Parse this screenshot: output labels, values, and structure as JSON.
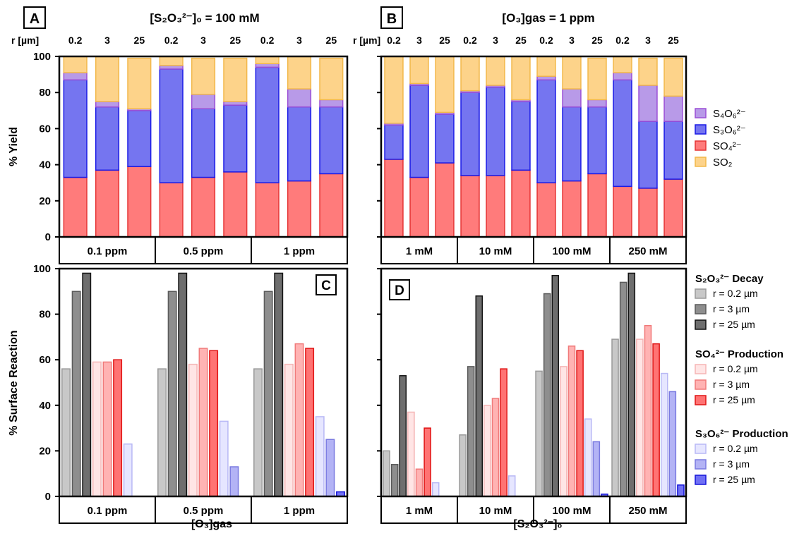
{
  "colors": {
    "so2": "#FDD38A",
    "so4": "#FF7B7B",
    "s3o6": "#7575F0",
    "s4o6": "#B89AE8",
    "so2_edge": "#F2B84A",
    "so4_edge": "#E53535",
    "s3o6_edge": "#1A1AE6",
    "s4o6_edge": "#9B4FD6"
  },
  "panelA": {
    "label": "A",
    "title": "[S₂O₃²⁻]₀ = 100 mM",
    "r_header": "r [µm]",
    "r_labels": [
      "0.2",
      "3",
      "25",
      "0.2",
      "3",
      "25",
      "0.2",
      "3",
      "25"
    ],
    "groups": [
      "0.1 ppm",
      "0.5 ppm",
      "1 ppm"
    ],
    "ylabel": "% Yield",
    "yticks": [
      "0",
      "20",
      "40",
      "60",
      "80",
      "100"
    ]
  },
  "panelB": {
    "label": "B",
    "title": "[O₃]gas = 1 ppm",
    "r_header": "r [µm]",
    "r_labels": [
      "0.2",
      "3",
      "25",
      "0.2",
      "3",
      "25",
      "0.2",
      "3",
      "25",
      "0.2",
      "3",
      "25"
    ],
    "groups": [
      "1 mM",
      "10 mM",
      "100 mM",
      "250 mM"
    ]
  },
  "legend_top": [
    "S₄O₆²⁻",
    "S₃O₆²⁻",
    "SO₄²⁻",
    "SO₂"
  ],
  "panelC": {
    "label": "C",
    "groups": [
      "0.1 ppm",
      "0.5 ppm",
      "1 ppm"
    ],
    "xlabel": "[O₃]gas",
    "ylabel": "% Surface Reaction",
    "yticks": [
      "0",
      "20",
      "40",
      "60",
      "80",
      "100"
    ]
  },
  "panelD": {
    "label": "D",
    "groups": [
      "1 mM",
      "10 mM",
      "100 mM",
      "250 mM"
    ],
    "xlabel": "[S₂O₃²⁻]₀"
  },
  "legend_bottom": {
    "sections": [
      {
        "title": "S₂O₃²⁻ Decay",
        "items": [
          "r = 0.2 µm",
          "r = 3 µm",
          "r = 25 µm"
        ]
      },
      {
        "title": "SO₄²⁻ Production",
        "items": [
          "r = 0.2 µm",
          "r = 3 µm",
          "r = 25 µm"
        ]
      },
      {
        "title": "S₃O₆²⁻ Production",
        "items": [
          "r = 0.2 µm",
          "r = 3 µm",
          "r = 25 µm"
        ]
      }
    ]
  },
  "chart_data": [
    {
      "type": "bar",
      "panel": "A",
      "stacked": true,
      "ylim": [
        0,
        100
      ],
      "ylabel": "% Yield",
      "categories": [
        "0.1 ppm r=0.2",
        "0.1 ppm r=3",
        "0.1 ppm r=25",
        "0.5 ppm r=0.2",
        "0.5 ppm r=3",
        "0.5 ppm r=25",
        "1 ppm r=0.2",
        "1 ppm r=3",
        "1 ppm r=25"
      ],
      "series": [
        {
          "name": "SO₄²⁻",
          "values": [
            33,
            37,
            39,
            30,
            33,
            36,
            30,
            31,
            35
          ]
        },
        {
          "name": "S₃O₆²⁻",
          "values": [
            54,
            35,
            31,
            63,
            38,
            37,
            64,
            41,
            37
          ]
        },
        {
          "name": "S₄O₆²⁻",
          "values": [
            4,
            3,
            1,
            2,
            8,
            2,
            2,
            10,
            4
          ]
        },
        {
          "name": "SO₂",
          "values": [
            9,
            25,
            28,
            5,
            20,
            24,
            4,
            18,
            23
          ]
        }
      ]
    },
    {
      "type": "bar",
      "panel": "B",
      "stacked": true,
      "ylim": [
        0,
        100
      ],
      "categories": [
        "1 mM r=0.2",
        "1 mM r=3",
        "1 mM r=25",
        "10 mM r=0.2",
        "10 mM r=3",
        "10 mM r=25",
        "100 mM r=0.2",
        "100 mM r=3",
        "100 mM r=25",
        "250 mM r=0.2",
        "250 mM r=3",
        "250 mM r=25"
      ],
      "series": [
        {
          "name": "SO₄²⁻",
          "values": [
            43,
            33,
            41,
            34,
            34,
            37,
            30,
            31,
            35,
            28,
            27,
            32
          ]
        },
        {
          "name": "S₃O₆²⁻",
          "values": [
            19,
            51,
            27,
            46,
            49,
            38,
            57,
            41,
            37,
            59,
            37,
            32
          ]
        },
        {
          "name": "S₄O₆²⁻",
          "values": [
            1,
            1,
            1,
            1,
            1,
            1,
            2,
            10,
            4,
            4,
            20,
            14
          ]
        },
        {
          "name": "SO₂",
          "values": [
            37,
            15,
            31,
            19,
            16,
            24,
            11,
            18,
            23,
            9,
            15,
            21
          ]
        }
      ]
    },
    {
      "type": "bar",
      "panel": "C",
      "ylim": [
        0,
        100
      ],
      "ylabel": "% Surface Reaction",
      "xlabel": "[O₃]gas",
      "categories": [
        "0.1 ppm",
        "0.5 ppm",
        "1 ppm"
      ],
      "series": [
        {
          "name": "S₂O₃²⁻ Decay r = 0.2 µm",
          "values": [
            56,
            56,
            56
          ]
        },
        {
          "name": "S₂O₃²⁻ Decay r = 3 µm",
          "values": [
            90,
            90,
            90
          ]
        },
        {
          "name": "S₂O₃²⁻ Decay r = 25 µm",
          "values": [
            98,
            98,
            98
          ]
        },
        {
          "name": "SO₄²⁻ Production r = 0.2 µm",
          "values": [
            59,
            58,
            58
          ]
        },
        {
          "name": "SO₄²⁻ Production r = 3 µm",
          "values": [
            59,
            65,
            67
          ]
        },
        {
          "name": "SO₄²⁻ Production r = 25 µm",
          "values": [
            60,
            64,
            65
          ]
        },
        {
          "name": "S₃O₆²⁻ Production r = 0.2 µm",
          "values": [
            23,
            33,
            35
          ]
        },
        {
          "name": "S₃O₆²⁻ Production r = 3 µm",
          "values": [
            0,
            13,
            25
          ]
        },
        {
          "name": "S₃O₆²⁻ Production r = 25 µm",
          "values": [
            0,
            0,
            2
          ]
        }
      ]
    },
    {
      "type": "bar",
      "panel": "D",
      "ylim": [
        0,
        100
      ],
      "xlabel": "[S₂O₃²⁻]₀",
      "categories": [
        "1 mM",
        "10 mM",
        "100 mM",
        "250 mM"
      ],
      "series": [
        {
          "name": "S₂O₃²⁻ Decay r = 0.2 µm",
          "values": [
            20,
            27,
            55,
            69
          ]
        },
        {
          "name": "S₂O₃²⁻ Decay r = 3 µm",
          "values": [
            14,
            57,
            89,
            94
          ]
        },
        {
          "name": "S₂O₃²⁻ Decay r = 25 µm",
          "values": [
            53,
            88,
            97,
            98
          ]
        },
        {
          "name": "SO₄²⁻ Production r = 0.2 µm",
          "values": [
            37,
            40,
            57,
            69
          ]
        },
        {
          "name": "SO₄²⁻ Production r = 3 µm",
          "values": [
            12,
            43,
            66,
            75
          ]
        },
        {
          "name": "SO₄²⁻ Production r = 25 µm",
          "values": [
            30,
            56,
            64,
            67
          ]
        },
        {
          "name": "S₃O₆²⁻ Production r = 0.2 µm",
          "values": [
            6,
            9,
            34,
            54
          ]
        },
        {
          "name": "S₃O₆²⁻ Production r = 3 µm",
          "values": [
            0,
            0,
            24,
            46
          ]
        },
        {
          "name": "S₃O₆²⁻ Production r = 25 µm",
          "values": [
            0,
            0,
            1,
            5
          ]
        }
      ]
    }
  ]
}
